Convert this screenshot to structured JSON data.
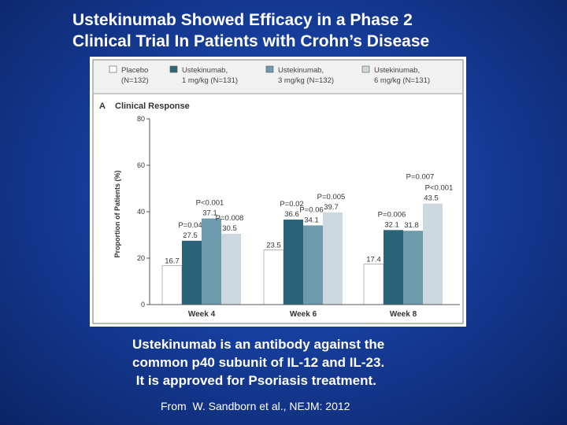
{
  "slide": {
    "title_line1": "Ustekinumab Showed Efficacy in a Phase 2",
    "title_line2": "Clinical Trial In Patients with Crohn’s Disease",
    "caption_line1": "Ustekinumab is an antibody against the",
    "caption_line2": "common p40 subunit of IL-12 and IL-23.",
    "caption_line3": " It is approved for Psoriasis treatment.",
    "citation": "From  W. Sandborn et al., NEJM: 2012"
  },
  "chart_data": {
    "type": "bar",
    "panel_label": "A",
    "title": "Clinical Response",
    "ylabel": "Proportion of Patients (%)",
    "xlabel": "",
    "ylim": [
      0,
      80
    ],
    "yticks": [
      0,
      20,
      40,
      60,
      80
    ],
    "categories": [
      "Week 4",
      "Week 6",
      "Week 8"
    ],
    "legend_position": "top",
    "series": [
      {
        "legend_line1": "Placebo",
        "legend_line2": "(N=132)",
        "color": "#ffffff",
        "values": [
          16.7,
          23.5,
          17.4
        ]
      },
      {
        "legend_line1": "Ustekinumab,",
        "legend_line2": "1 mg/kg (N=131)",
        "color": "#2b6478",
        "values": [
          27.5,
          36.6,
          32.1
        ]
      },
      {
        "legend_line1": "Ustekinumab,",
        "legend_line2": "3 mg/kg (N=132)",
        "color": "#6d9aad",
        "values": [
          37.1,
          34.1,
          31.8
        ]
      },
      {
        "legend_line1": "Ustekinumab,",
        "legend_line2": "6 mg/kg (N=131)",
        "color": "#ccd8e0",
        "values": [
          30.5,
          39.7,
          43.5
        ]
      }
    ],
    "value_labels": [
      [
        "16.7",
        "23.5",
        "17.4"
      ],
      [
        "27.5",
        "36.6",
        "32.1"
      ],
      [
        "37.1",
        "34.1",
        "31.8"
      ],
      [
        "30.5",
        "39.7",
        "43.5"
      ]
    ],
    "p_values": [
      [
        null,
        null,
        null
      ],
      [
        "P=0.04",
        "P=0.02",
        "P=0.006"
      ],
      [
        "P<0.001",
        "P=0.06",
        null
      ],
      [
        "P=0.008",
        "P=0.005",
        "P=0.007"
      ]
    ],
    "extra_annotations": [
      {
        "group": 2,
        "series": 3,
        "text": "P<0.001"
      }
    ]
  }
}
